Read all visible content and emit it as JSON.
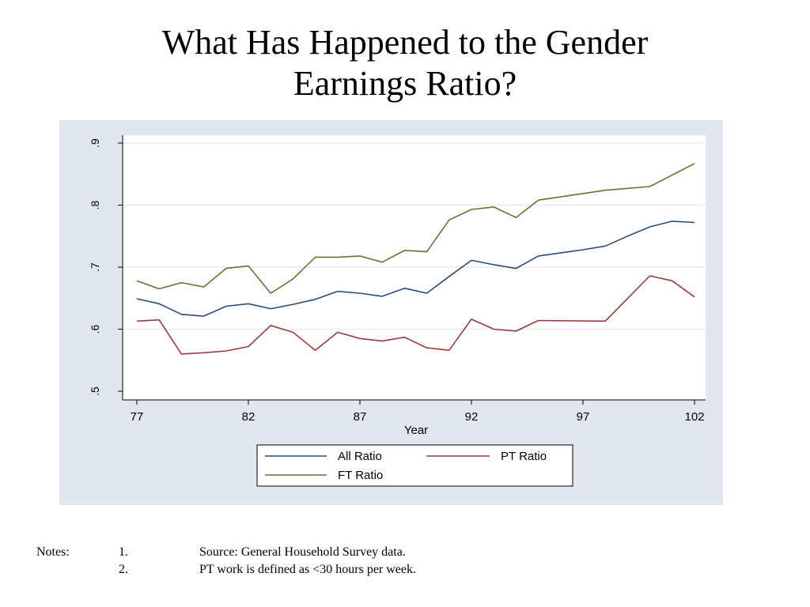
{
  "slide": {
    "title_line1": "What Has Happened to the Gender",
    "title_line2": "Earnings Ratio?"
  },
  "notes": {
    "label": "Notes:",
    "items": [
      {
        "num": "1.",
        "text": "Source: General Household Survey data."
      },
      {
        "num": "2.",
        "text": "PT work is defined as <30 hours per week."
      }
    ]
  },
  "chart_data": {
    "type": "line",
    "title": "",
    "xlabel": "Year",
    "ylabel": "",
    "xlim": [
      77,
      102
    ],
    "ylim": [
      0.5,
      0.9
    ],
    "x_ticks": [
      77,
      82,
      87,
      92,
      97,
      102
    ],
    "x_tick_labels": [
      "77",
      "82",
      "87",
      "92",
      "97",
      "102"
    ],
    "y_ticks": [
      0.5,
      0.6,
      0.7,
      0.8,
      0.9
    ],
    "y_tick_labels": [
      ".5",
      ".6",
      ".7",
      ".8",
      ".9"
    ],
    "grid": true,
    "legend_position": "bottom",
    "colors": {
      "panel_background": "#e1e6ef",
      "plot_background": "#ffffff",
      "grid": "#e8ebf1",
      "all_ratio": "#2a4a78",
      "pt_ratio": "#9a3b3b",
      "ft_ratio": "#5a7a2e"
    },
    "series": [
      {
        "name": "All Ratio",
        "color_key": "all_ratio",
        "x": [
          77,
          78,
          79,
          80,
          81,
          82,
          83,
          84,
          85,
          86,
          87,
          88,
          89,
          90,
          91,
          92,
          93,
          94,
          95,
          96,
          97,
          98,
          99,
          100,
          101,
          102
        ],
        "y": [
          0.649,
          0.641,
          0.624,
          0.621,
          0.637,
          0.641,
          0.633,
          0.64,
          0.648,
          0.661,
          0.658,
          0.653,
          0.666,
          0.658,
          0.685,
          0.711,
          0.704,
          0.698,
          0.718,
          0.723,
          0.728,
          0.734,
          0.75,
          0.765,
          0.774,
          0.772
        ]
      },
      {
        "name": "PT Ratio",
        "color_key": "pt_ratio",
        "x": [
          77,
          78,
          79,
          80,
          81,
          82,
          83,
          84,
          85,
          86,
          87,
          88,
          89,
          90,
          91,
          92,
          93,
          94,
          95,
          98,
          100,
          101,
          102
        ],
        "y": [
          0.613,
          0.615,
          0.56,
          0.562,
          0.565,
          0.572,
          0.606,
          0.595,
          0.566,
          0.595,
          0.585,
          0.581,
          0.587,
          0.57,
          0.566,
          0.616,
          0.6,
          0.597,
          0.614,
          0.613,
          0.686,
          0.678,
          0.652
        ]
      },
      {
        "name": "FT Ratio",
        "color_key": "ft_ratio",
        "x": [
          77,
          78,
          79,
          80,
          81,
          82,
          83,
          84,
          85,
          86,
          87,
          88,
          89,
          90,
          91,
          92,
          93,
          94,
          95,
          98,
          100,
          102
        ],
        "y": [
          0.678,
          0.665,
          0.675,
          0.668,
          0.698,
          0.702,
          0.658,
          0.681,
          0.716,
          0.716,
          0.718,
          0.708,
          0.727,
          0.725,
          0.776,
          0.793,
          0.797,
          0.78,
          0.808,
          0.824,
          0.83,
          0.867
        ]
      }
    ]
  }
}
